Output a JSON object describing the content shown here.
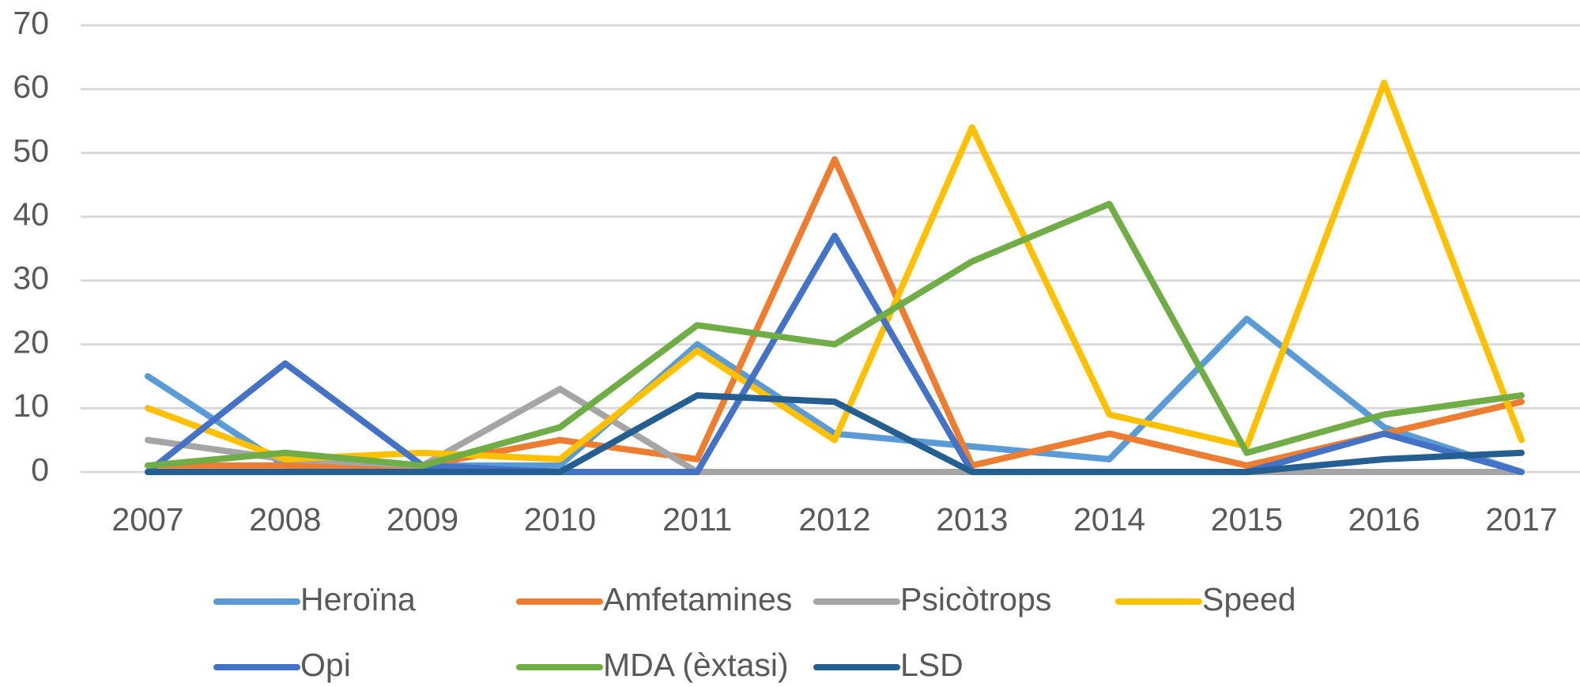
{
  "chart_data": {
    "type": "line",
    "categories": [
      "2007",
      "2008",
      "2009",
      "2010",
      "2011",
      "2012",
      "2013",
      "2014",
      "2015",
      "2016",
      "2017"
    ],
    "series": [
      {
        "name": "Heroïna",
        "color": "#5b9bd5",
        "values": [
          15,
          1,
          1,
          1,
          20,
          6,
          4,
          2,
          24,
          7,
          0
        ]
      },
      {
        "name": "Amfetamines",
        "color": "#ed7d31",
        "values": [
          1,
          1,
          1,
          5,
          2,
          49,
          1,
          6,
          1,
          6,
          11
        ]
      },
      {
        "name": "Psicòtrops",
        "color": "#a5a5a5",
        "values": [
          5,
          2,
          1,
          13,
          0,
          0,
          0,
          0,
          0,
          0,
          0
        ]
      },
      {
        "name": "Speed",
        "color": "#ffc000",
        "values": [
          10,
          2,
          3,
          2,
          19,
          5,
          54,
          9,
          4,
          61,
          5
        ]
      },
      {
        "name": "Opi",
        "color": "#4472c4",
        "values": [
          0,
          17,
          1,
          0,
          0,
          37,
          0,
          0,
          0,
          6,
          0
        ]
      },
      {
        "name": "MDA (èxtasi)",
        "color": "#70ad47",
        "values": [
          1,
          3,
          1,
          7,
          23,
          20,
          33,
          42,
          3,
          9,
          12
        ]
      },
      {
        "name": "LSD",
        "color": "#255e91",
        "values": [
          0,
          0,
          0,
          0,
          12,
          11,
          0,
          0,
          0,
          2,
          3
        ]
      }
    ],
    "ylim": [
      0,
      70
    ],
    "yticks": [
      0,
      10,
      20,
      30,
      40,
      50,
      60,
      70
    ],
    "grid": true,
    "legend": "bottom"
  }
}
